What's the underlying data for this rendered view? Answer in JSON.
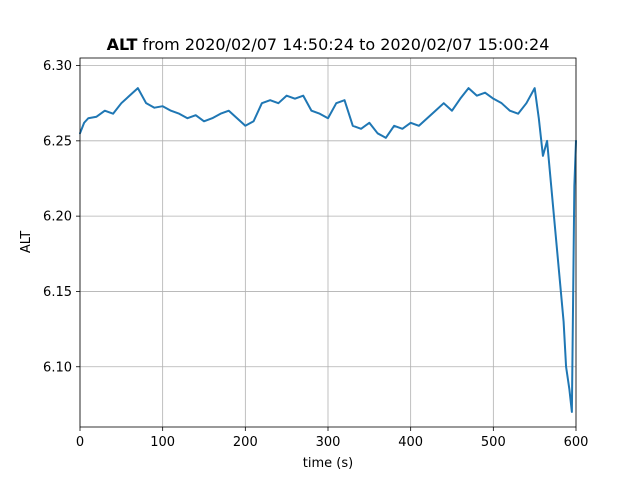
{
  "chart_data": {
    "type": "line",
    "title_bold": "ALT",
    "title_rest": " from 2020/02/07 14:50:24 to 2020/02/07 15:00:24",
    "xlabel": "time (s)",
    "ylabel": "ALT",
    "xlim": [
      0,
      600
    ],
    "ylim": [
      6.06,
      6.305
    ],
    "xticks": [
      0,
      100,
      200,
      300,
      400,
      500,
      600
    ],
    "yticks": [
      6.1,
      6.15,
      6.2,
      6.25,
      6.3
    ],
    "xtick_labels": [
      "0",
      "100",
      "200",
      "300",
      "400",
      "500",
      "600"
    ],
    "ytick_labels": [
      "6.10",
      "6.15",
      "6.20",
      "6.25",
      "6.30"
    ],
    "grid": true,
    "color": "#1f77b4",
    "series": [
      {
        "x": [
          0,
          5,
          10,
          20,
          30,
          40,
          50,
          60,
          70,
          80,
          90,
          100,
          110,
          120,
          130,
          140,
          150,
          160,
          170,
          180,
          190,
          200,
          210,
          220,
          230,
          240,
          250,
          260,
          270,
          280,
          290,
          300,
          310,
          320,
          330,
          340,
          350,
          360,
          370,
          380,
          390,
          400,
          410,
          420,
          430,
          440,
          450,
          460,
          470,
          480,
          490,
          500,
          510,
          520,
          530,
          540,
          550,
          555,
          560,
          565,
          570,
          575,
          580,
          585,
          588,
          592,
          595,
          598,
          600
        ],
        "y": [
          6.255,
          6.262,
          6.265,
          6.266,
          6.27,
          6.268,
          6.275,
          6.28,
          6.285,
          6.275,
          6.272,
          6.273,
          6.27,
          6.268,
          6.265,
          6.267,
          6.263,
          6.265,
          6.268,
          6.27,
          6.265,
          6.26,
          6.263,
          6.275,
          6.277,
          6.275,
          6.28,
          6.278,
          6.28,
          6.27,
          6.268,
          6.265,
          6.275,
          6.277,
          6.26,
          6.258,
          6.262,
          6.255,
          6.252,
          6.26,
          6.258,
          6.262,
          6.26,
          6.265,
          6.27,
          6.275,
          6.27,
          6.278,
          6.285,
          6.28,
          6.282,
          6.278,
          6.275,
          6.27,
          6.268,
          6.275,
          6.285,
          6.265,
          6.24,
          6.25,
          6.22,
          6.19,
          6.16,
          6.13,
          6.1,
          6.085,
          6.07,
          6.22,
          6.25
        ]
      }
    ]
  }
}
